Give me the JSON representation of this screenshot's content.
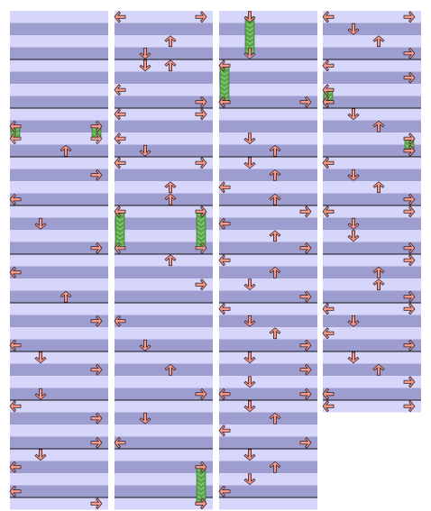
{
  "chart_data": {
    "type": "step-chart",
    "lanes": [
      "left",
      "down",
      "up",
      "right"
    ],
    "columns": [
      {
        "notes": [
          [
            "left",
            9
          ],
          [
            "right",
            9
          ],
          [
            "up",
            11
          ],
          [
            "right",
            13
          ],
          [
            "left",
            15
          ],
          [
            "down",
            17
          ],
          [
            "right",
            19
          ],
          [
            "left",
            21
          ],
          [
            "up",
            23
          ],
          [
            "right",
            25
          ],
          [
            "left",
            27
          ],
          [
            "down",
            28
          ],
          [
            "right",
            29
          ],
          [
            "down",
            31
          ],
          [
            "left",
            32
          ],
          [
            "right",
            33
          ],
          [
            "right",
            35
          ],
          [
            "down",
            36
          ],
          [
            "left",
            37
          ],
          [
            "left",
            39
          ],
          [
            "right",
            40
          ]
        ],
        "holds": [
          [
            "left",
            9,
            10
          ],
          [
            "right",
            9,
            10
          ]
        ]
      },
      {
        "notes": [
          [
            "left",
            0
          ],
          [
            "right",
            0
          ],
          [
            "up",
            2
          ],
          [
            "down",
            3
          ],
          [
            "down",
            4
          ],
          [
            "up",
            4
          ],
          [
            "left",
            6
          ],
          [
            "right",
            7
          ],
          [
            "right",
            8
          ],
          [
            "left",
            8
          ],
          [
            "left",
            10
          ],
          [
            "down",
            11
          ],
          [
            "left",
            12
          ],
          [
            "right",
            12
          ],
          [
            "up",
            14
          ],
          [
            "up",
            15
          ],
          [
            "left",
            16
          ],
          [
            "right",
            16
          ],
          [
            "up",
            20
          ],
          [
            "right",
            22
          ],
          [
            "left",
            25
          ],
          [
            "down",
            27
          ],
          [
            "up",
            29
          ],
          [
            "right",
            31
          ],
          [
            "down",
            33
          ],
          [
            "left",
            35
          ],
          [
            "right",
            37
          ],
          [
            "right",
            40
          ]
        ],
        "holds": [
          [
            "left",
            16,
            19
          ],
          [
            "right",
            16,
            19
          ],
          [
            "right",
            37,
            40
          ]
        ]
      },
      {
        "notes": [
          [
            "down",
            0
          ],
          [
            "left",
            4
          ],
          [
            "right",
            7
          ],
          [
            "left",
            7
          ],
          [
            "down",
            10
          ],
          [
            "up",
            11
          ],
          [
            "down",
            12
          ],
          [
            "up",
            13
          ],
          [
            "left",
            14
          ],
          [
            "up",
            15
          ],
          [
            "right",
            16
          ],
          [
            "left",
            17
          ],
          [
            "up",
            18
          ],
          [
            "right",
            19
          ],
          [
            "left",
            20
          ],
          [
            "up",
            21
          ],
          [
            "down",
            22
          ],
          [
            "right",
            23
          ],
          [
            "left",
            24
          ],
          [
            "down",
            25
          ],
          [
            "up",
            26
          ],
          [
            "right",
            27
          ],
          [
            "down",
            28
          ],
          [
            "right",
            29
          ],
          [
            "down",
            30
          ],
          [
            "left",
            31
          ],
          [
            "right",
            31
          ],
          [
            "down",
            32
          ],
          [
            "up",
            33
          ],
          [
            "left",
            34
          ],
          [
            "right",
            35
          ],
          [
            "down",
            36
          ],
          [
            "up",
            37
          ],
          [
            "down",
            38
          ],
          [
            "left",
            39
          ]
        ],
        "holds": [
          [
            "down",
            0,
            3
          ],
          [
            "left",
            4,
            7
          ]
        ]
      },
      {
        "notes": [
          [
            "left",
            0
          ],
          [
            "right",
            0
          ],
          [
            "down",
            1
          ],
          [
            "up",
            2
          ],
          [
            "right",
            3
          ],
          [
            "left",
            4
          ],
          [
            "right",
            5
          ],
          [
            "left",
            6
          ],
          [
            "left",
            7
          ],
          [
            "down",
            8
          ],
          [
            "up",
            9
          ],
          [
            "right",
            10
          ],
          [
            "right",
            11
          ],
          [
            "left",
            12
          ],
          [
            "down",
            13
          ],
          [
            "up",
            14
          ],
          [
            "right",
            15
          ],
          [
            "left",
            16
          ],
          [
            "right",
            16
          ],
          [
            "down",
            17
          ],
          [
            "down",
            18
          ],
          [
            "right",
            19
          ],
          [
            "right",
            20
          ],
          [
            "up",
            21
          ],
          [
            "up",
            22
          ],
          [
            "right",
            23
          ],
          [
            "left",
            24
          ],
          [
            "right",
            24
          ],
          [
            "down",
            25
          ],
          [
            "left",
            26
          ],
          [
            "right",
            27
          ],
          [
            "down",
            28
          ],
          [
            "up",
            29
          ],
          [
            "right",
            30
          ],
          [
            "left",
            31
          ],
          [
            "right",
            32
          ],
          [
            "left",
            32
          ]
        ],
        "holds": [
          [
            "left",
            6,
            7
          ],
          [
            "right",
            10,
            11
          ]
        ]
      }
    ]
  }
}
